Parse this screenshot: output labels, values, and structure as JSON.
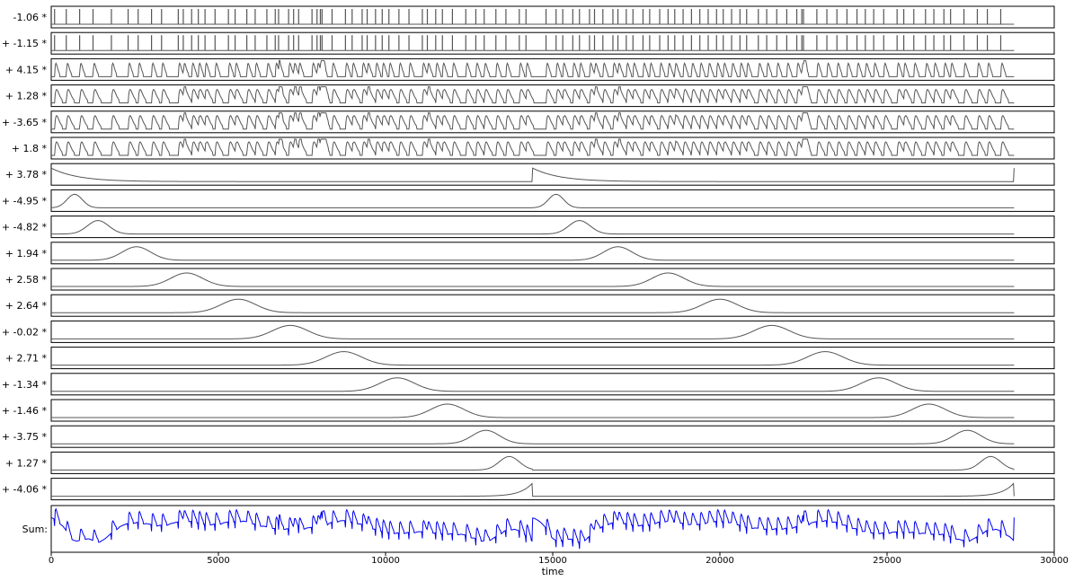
{
  "chart_data": {
    "type": "line",
    "xlabel": "time",
    "xlim": [
      0,
      30000
    ],
    "x_ticks": [
      0,
      5000,
      10000,
      15000,
      20000,
      25000,
      30000
    ],
    "x_tick_labels": [
      "0",
      "5000",
      "10000",
      "15000",
      "20000",
      "25000",
      "30000"
    ],
    "data_end": 28800,
    "period": 14400,
    "panel_labels": [
      "-1.06 *",
      "+ -1.15 *",
      "+ 4.15 *",
      "+ 1.28 *",
      "+ -3.65 *",
      "+ 1.8 *",
      "+ 3.78 *",
      "+ -4.95 *",
      "+ -4.82 *",
      "+ 1.94 *",
      "+ 2.58 *",
      "+ 2.64 *",
      "+ -0.02 *",
      "+ 2.71 *",
      "+ -1.34 *",
      "+ -1.46 *",
      "+ -3.75 *",
      "+ 1.27 *",
      "+ -4.06 *"
    ],
    "coefficients": [
      -1.06,
      -1.15,
      4.15,
      1.28,
      -3.65,
      1.8,
      3.78,
      -4.95,
      -4.82,
      1.94,
      2.58,
      2.64,
      -0.02,
      2.71,
      -1.34,
      -1.46,
      -3.75,
      1.27,
      -4.06
    ],
    "spike_regressors": [
      {
        "index": 0,
        "kind": "stick"
      },
      {
        "index": 1,
        "kind": "stick"
      },
      {
        "index": 2,
        "kind": "hrf",
        "width": 40
      },
      {
        "index": 3,
        "kind": "hrf",
        "width": 60
      },
      {
        "index": 4,
        "kind": "hrf",
        "width": 60
      },
      {
        "index": 5,
        "kind": "hrf",
        "width": 60
      }
    ],
    "spike_times": [
      100,
      450,
      850,
      1250,
      1800,
      2300,
      2600,
      3000,
      3300,
      3800,
      3950,
      4200,
      4400,
      4600,
      4900,
      5300,
      5500,
      5850,
      6100,
      6450,
      6700,
      6800,
      7100,
      7250,
      7400,
      7800,
      7950,
      8050,
      8100,
      8400,
      8800,
      9000,
      9300,
      9450,
      9700,
      9900,
      10100,
      10400,
      10700,
      11100,
      11250,
      11500,
      11700,
      12000,
      12400,
      12700,
      12950,
      13300,
      13600,
      14000,
      14200,
      14800,
      15100,
      15300,
      15600,
      15800,
      16100,
      16250,
      16500,
      16800,
      16950,
      17200,
      17400,
      17700,
      17900,
      18200,
      18450,
      18650,
      18900,
      19150,
      19400,
      19650,
      19900,
      20100,
      20350,
      20600,
      20800,
      21150,
      21400,
      21700,
      22000,
      22300,
      22450,
      22500,
      22900,
      23200,
      23500,
      23800,
      24100,
      24350,
      24600,
      24900,
      25300,
      25500,
      25800,
      26150,
      26400,
      26700,
      26900,
      27300,
      27700,
      28000,
      28400
    ],
    "decay_regressor": {
      "index": 6,
      "tau": 800
    },
    "bump_regressors": [
      {
        "index": 7,
        "center": 700,
        "width": 650
      },
      {
        "index": 8,
        "center": 1400,
        "width": 900
      },
      {
        "index": 9,
        "center": 2550,
        "width": 1200
      },
      {
        "index": 10,
        "center": 4050,
        "width": 1350
      },
      {
        "index": 11,
        "center": 5600,
        "width": 1450
      },
      {
        "index": 12,
        "center": 7150,
        "width": 1500
      },
      {
        "index": 13,
        "center": 8750,
        "width": 1500
      },
      {
        "index": 14,
        "center": 10350,
        "width": 1450
      },
      {
        "index": 15,
        "center": 11850,
        "width": 1400
      },
      {
        "index": 16,
        "center": 13000,
        "width": 1150
      },
      {
        "index": 17,
        "center": 13700,
        "width": 850
      }
    ],
    "ramp_regressor": {
      "index": 18,
      "tau": 350
    },
    "sum_label": "Sum:",
    "colors": {
      "regressor_line": "#555555",
      "sum_line": "#0000ee",
      "frame": "#000000"
    }
  }
}
